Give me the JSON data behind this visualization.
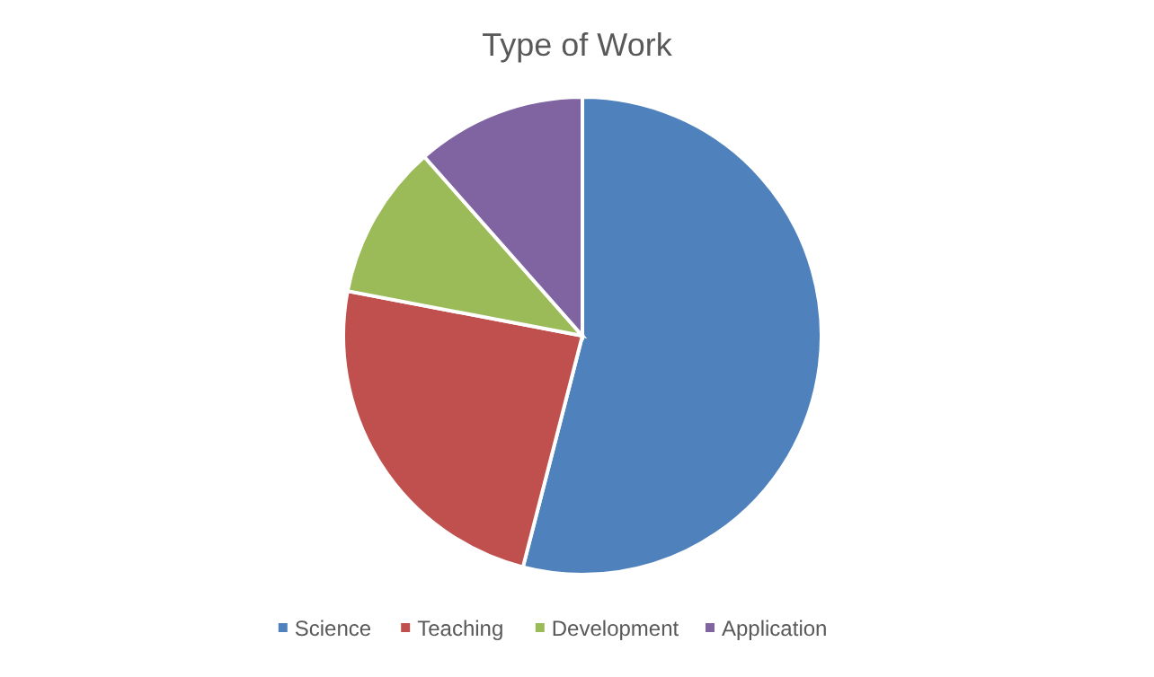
{
  "chart_data": {
    "type": "pie",
    "title": "Type of Work",
    "categories": [
      "Science",
      "Teaching",
      "Development",
      "Application"
    ],
    "values": [
      54,
      24,
      10.5,
      11.5
    ],
    "colors": [
      "#4f81bd",
      "#c0504d",
      "#9bbb59",
      "#8064a2"
    ],
    "legend": "bottom"
  }
}
